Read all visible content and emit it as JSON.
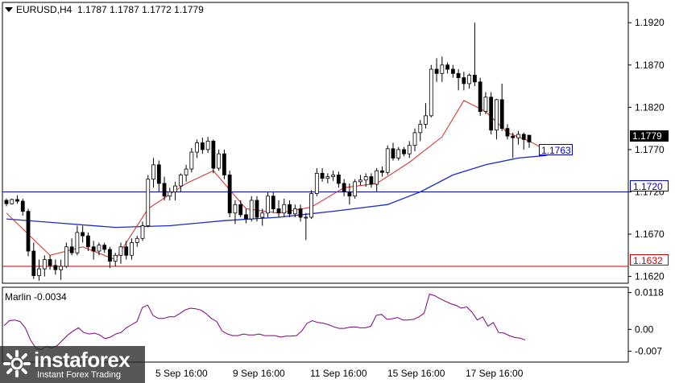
{
  "chart_header": {
    "symbol_label": "EURUSD,H4",
    "ohlc": "1.1787 1.1787 1.1772 1.1779"
  },
  "price_axis": {
    "ticks": [
      "1.1920",
      "1.1870",
      "1.1820",
      "1.1770",
      "1.1720",
      "1.1670",
      "1.1620"
    ]
  },
  "tags": {
    "current_price": "1.1779",
    "ma_value": "1.1763",
    "blue_level": "1.1720",
    "red_level": "1.1632"
  },
  "indicator": {
    "title": "Marlin -0.0034",
    "ticks": [
      "0.0118",
      "0.00",
      "-0.007"
    ]
  },
  "time_axis": {
    "labels": [
      "5 Sep 16:00",
      "9 Sep 16:00",
      "11 Sep 16:00",
      "15 Sep 16:00",
      "17 Sep 16:00"
    ]
  },
  "watermark": {
    "brand": "instaforex",
    "tagline": "Instant Forex Trading"
  },
  "colors": {
    "blue_line": "#0000cc",
    "red_line": "#cc0000",
    "ma_fast": "#dd2222",
    "ma_slow": "#1a2acc",
    "oscillator": "#800080",
    "tag_border": "#0000cc"
  },
  "chart_data": [
    {
      "type": "candlestick",
      "title": "EURUSD,H4",
      "ylim": [
        1.1612,
        1.1944
      ],
      "horizontal_levels": [
        1.172,
        1.1632
      ],
      "candles": [
        [
          1.171,
          1.1712,
          1.1703,
          1.1706
        ],
        [
          1.1706,
          1.1712,
          1.1705,
          1.1711
        ],
        [
          1.1711,
          1.1716,
          1.1706,
          1.1709
        ],
        [
          1.1709,
          1.1712,
          1.1692,
          1.1697
        ],
        [
          1.1697,
          1.17,
          1.1644,
          1.165
        ],
        [
          1.165,
          1.166,
          1.1617,
          1.1621
        ],
        [
          1.1621,
          1.164,
          1.1615,
          1.1629
        ],
        [
          1.1629,
          1.1645,
          1.162,
          1.164
        ],
        [
          1.164,
          1.1645,
          1.1628,
          1.1633
        ],
        [
          1.1633,
          1.164,
          1.1622,
          1.1628
        ],
        [
          1.1628,
          1.164,
          1.1616,
          1.1632
        ],
        [
          1.1632,
          1.166,
          1.163,
          1.1655
        ],
        [
          1.1655,
          1.1665,
          1.1645,
          1.1648
        ],
        [
          1.1648,
          1.168,
          1.1645,
          1.1672
        ],
        [
          1.1672,
          1.168,
          1.166,
          1.1668
        ],
        [
          1.1668,
          1.1672,
          1.165,
          1.1655
        ],
        [
          1.1655,
          1.1662,
          1.164,
          1.165
        ],
        [
          1.165,
          1.166,
          1.1645,
          1.1657
        ],
        [
          1.1657,
          1.166,
          1.1648,
          1.1652
        ],
        [
          1.1652,
          1.1655,
          1.163,
          1.1638
        ],
        [
          1.1638,
          1.1648,
          1.1632,
          1.1645
        ],
        [
          1.1645,
          1.166,
          1.1635,
          1.1655
        ],
        [
          1.1655,
          1.1662,
          1.164,
          1.1645
        ],
        [
          1.1645,
          1.1665,
          1.164,
          1.166
        ],
        [
          1.166,
          1.1668,
          1.1655,
          1.1665
        ],
        [
          1.1665,
          1.1685,
          1.1662,
          1.168
        ],
        [
          1.168,
          1.174,
          1.1678,
          1.1735
        ],
        [
          1.1735,
          1.176,
          1.1725,
          1.1752
        ],
        [
          1.1752,
          1.1757,
          1.172,
          1.173
        ],
        [
          1.173,
          1.1738,
          1.171,
          1.1715
        ],
        [
          1.1715,
          1.1725,
          1.171,
          1.172
        ],
        [
          1.172,
          1.1732,
          1.171,
          1.1727
        ],
        [
          1.1727,
          1.1742,
          1.172,
          1.174
        ],
        [
          1.174,
          1.1752,
          1.1732,
          1.1747
        ],
        [
          1.1747,
          1.1772,
          1.1743,
          1.1767
        ],
        [
          1.1767,
          1.1782,
          1.176,
          1.1778
        ],
        [
          1.1778,
          1.1784,
          1.1765,
          1.177
        ],
        [
          1.177,
          1.1785,
          1.1766,
          1.178
        ],
        [
          1.178,
          1.1782,
          1.1742,
          1.1748
        ],
        [
          1.1748,
          1.177,
          1.1745,
          1.1765
        ],
        [
          1.1765,
          1.177,
          1.1735,
          1.174
        ],
        [
          1.174,
          1.1745,
          1.169,
          1.1695
        ],
        [
          1.1695,
          1.171,
          1.1682,
          1.1705
        ],
        [
          1.1705,
          1.171,
          1.169,
          1.1693
        ],
        [
          1.1693,
          1.17,
          1.1683,
          1.1688
        ],
        [
          1.1688,
          1.1715,
          1.1685,
          1.171
        ],
        [
          1.171,
          1.1715,
          1.1685,
          1.169
        ],
        [
          1.169,
          1.17,
          1.168,
          1.1695
        ],
        [
          1.1695,
          1.172,
          1.169,
          1.1715
        ],
        [
          1.1715,
          1.172,
          1.1695,
          1.17
        ],
        [
          1.17,
          1.171,
          1.169,
          1.1695
        ],
        [
          1.1695,
          1.1712,
          1.169,
          1.1705
        ],
        [
          1.1705,
          1.171,
          1.169,
          1.1694
        ],
        [
          1.1694,
          1.1705,
          1.169,
          1.17
        ],
        [
          1.17,
          1.1705,
          1.1685,
          1.169
        ],
        [
          1.169,
          1.1695,
          1.1663,
          1.169
        ],
        [
          1.169,
          1.1722,
          1.1688,
          1.1718
        ],
        [
          1.1718,
          1.1748,
          1.1715,
          1.1742
        ],
        [
          1.1742,
          1.1748,
          1.1732,
          1.1736
        ],
        [
          1.1736,
          1.1742,
          1.173,
          1.1738
        ],
        [
          1.1738,
          1.1745,
          1.1733,
          1.174
        ],
        [
          1.174,
          1.1744,
          1.1725,
          1.173
        ],
        [
          1.173,
          1.1735,
          1.1715,
          1.172
        ],
        [
          1.172,
          1.173,
          1.1705,
          1.1715
        ],
        [
          1.1715,
          1.1735,
          1.1712,
          1.1732
        ],
        [
          1.1732,
          1.174,
          1.1728,
          1.1734
        ],
        [
          1.1734,
          1.1742,
          1.1726,
          1.1738
        ],
        [
          1.1738,
          1.1742,
          1.1725,
          1.1729
        ],
        [
          1.1729,
          1.1748,
          1.172,
          1.1745
        ],
        [
          1.1745,
          1.175,
          1.1738,
          1.1743
        ],
        [
          1.1743,
          1.1775,
          1.174,
          1.1771
        ],
        [
          1.1771,
          1.1778,
          1.1757,
          1.176
        ],
        [
          1.176,
          1.1773,
          1.1757,
          1.177
        ],
        [
          1.177,
          1.1773,
          1.1762,
          1.1765
        ],
        [
          1.1765,
          1.178,
          1.176,
          1.1775
        ],
        [
          1.1775,
          1.1795,
          1.1768,
          1.179
        ],
        [
          1.179,
          1.1805,
          1.178,
          1.18
        ],
        [
          1.18,
          1.1825,
          1.1795,
          1.181
        ],
        [
          1.181,
          1.187,
          1.1808,
          1.1865
        ],
        [
          1.1865,
          1.1878,
          1.185,
          1.186
        ],
        [
          1.186,
          1.188,
          1.185,
          1.187
        ],
        [
          1.187,
          1.1873,
          1.186,
          1.1865
        ],
        [
          1.1865,
          1.187,
          1.1855,
          1.186
        ],
        [
          1.186,
          1.1865,
          1.184,
          1.1855
        ],
        [
          1.1855,
          1.1862,
          1.184,
          1.1848
        ],
        [
          1.1848,
          1.186,
          1.1842,
          1.1858
        ],
        [
          1.1858,
          1.192,
          1.1845,
          1.185
        ],
        [
          1.185,
          1.1855,
          1.181,
          1.1815
        ],
        [
          1.1815,
          1.1838,
          1.1812,
          1.1832
        ],
        [
          1.1832,
          1.1838,
          1.1788,
          1.1793
        ],
        [
          1.1793,
          1.183,
          1.1782,
          1.1829
        ],
        [
          1.1829,
          1.1848,
          1.1792,
          1.1795
        ],
        [
          1.1795,
          1.18,
          1.1782,
          1.1786
        ],
        [
          1.1786,
          1.179,
          1.176,
          1.1784
        ],
        [
          1.1784,
          1.1792,
          1.1776,
          1.1788
        ],
        [
          1.1788,
          1.179,
          1.177,
          1.1782
        ],
        [
          1.1787,
          1.1787,
          1.1772,
          1.1779
        ]
      ],
      "ma_fast": [
        [
          0,
          1.1695
        ],
        [
          8,
          1.1645
        ],
        [
          14,
          1.1655
        ],
        [
          20,
          1.164
        ],
        [
          26,
          1.17
        ],
        [
          33,
          1.173
        ],
        [
          38,
          1.1745
        ],
        [
          44,
          1.17
        ],
        [
          50,
          1.1695
        ],
        [
          56,
          1.1702
        ],
        [
          62,
          1.1725
        ],
        [
          68,
          1.173
        ],
        [
          74,
          1.1755
        ],
        [
          80,
          1.1785
        ],
        [
          84,
          1.1828
        ],
        [
          88,
          1.1815
        ],
        [
          92,
          1.179
        ],
        [
          96,
          1.178
        ],
        [
          99,
          1.177
        ]
      ],
      "ma_slow": [
        [
          0,
          1.1688
        ],
        [
          10,
          1.1683
        ],
        [
          20,
          1.1678
        ],
        [
          30,
          1.168
        ],
        [
          40,
          1.1686
        ],
        [
          50,
          1.169
        ],
        [
          60,
          1.1697
        ],
        [
          70,
          1.1705
        ],
        [
          76,
          1.172
        ],
        [
          82,
          1.174
        ],
        [
          88,
          1.1752
        ],
        [
          94,
          1.176
        ],
        [
          99,
          1.1763
        ]
      ]
    },
    {
      "type": "line",
      "title": "Marlin -0.0034",
      "ylim": [
        -0.0105,
        0.0135
      ],
      "series": [
        {
          "values": [
            0.0012,
            0.0028,
            0.003,
            0.0025,
            0.0005,
            -0.0035,
            -0.006,
            -0.0065,
            -0.0055,
            -0.006,
            -0.0052,
            -0.0035,
            -0.0018,
            -0.0005,
            0.0005,
            -0.001,
            -0.0015,
            -0.0012,
            -0.0018,
            -0.003,
            -0.0025,
            -0.0015,
            -0.001,
            0.0005,
            0.0015,
            0.0025,
            0.007,
            0.0078,
            0.0045,
            0.0035,
            0.0035,
            0.004,
            0.004,
            0.005,
            0.0062,
            0.0068,
            0.0066,
            0.0062,
            0.005,
            0.0035,
            0.0025,
            -0.0005,
            -0.0015,
            -0.002,
            -0.002,
            -0.0015,
            -0.0018,
            -0.0018,
            -0.0015,
            -0.002,
            -0.002,
            -0.002,
            -0.0025,
            -0.0022,
            -0.0022,
            -0.002,
            -0.0005,
            0.002,
            0.0028,
            0.0022,
            0.002,
            0.0015,
            0.0008,
            0.0003,
            0.0003,
            0.0007,
            0.0008,
            0.0005,
            0.0005,
            0.001,
            0.0045,
            0.0048,
            0.0032,
            0.0034,
            0.0038,
            0.003,
            0.003,
            0.0032,
            0.004,
            0.0052,
            0.0113,
            0.0108,
            0.0098,
            0.009,
            0.0082,
            0.0077,
            0.0068,
            0.0072,
            0.0055,
            0.003,
            0.004,
            0.001,
            0.0022,
            -0.001,
            -0.0012,
            -0.002,
            -0.0026,
            -0.0028,
            -0.0034
          ]
        }
      ]
    }
  ]
}
